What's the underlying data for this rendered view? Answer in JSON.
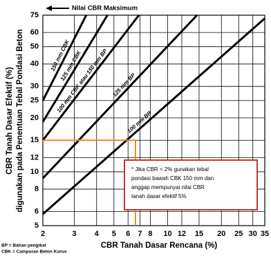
{
  "chart_data": {
    "type": "line",
    "title": "Nilai CBR Maksimum",
    "x_label": "CBR Tanah Dasar Rencana (%)",
    "y_label": [
      "CBR Tanah Dasar Efektif (%)",
      "digunakan pada Penentuan Tebal Pondasi Beton"
    ],
    "log_x": true,
    "log_y": true,
    "grid": true,
    "xlim": [
      2,
      35
    ],
    "ylim": [
      5,
      75
    ],
    "xticks": [
      2,
      3,
      4,
      5,
      6,
      7,
      8,
      10,
      12,
      15,
      20,
      25,
      30,
      35
    ],
    "yticks": [
      5,
      6,
      8,
      10,
      12,
      15,
      20,
      25,
      30,
      40,
      50,
      60,
      75
    ],
    "series": [
      {
        "name": "150 mm CBK",
        "color": "#000000",
        "x": [
          2,
          3.5
        ],
        "values": [
          25,
          75
        ]
      },
      {
        "name": "125 mm CBK",
        "color": "#000000",
        "x": [
          2,
          4.6
        ],
        "values": [
          19,
          75
        ]
      },
      {
        "name": "100 mm CBK atau 150 mm BP",
        "color": "#000000",
        "x": [
          2,
          6.9
        ],
        "values": [
          15,
          75
        ]
      },
      {
        "name": "125 mm BP",
        "color": "#000000",
        "x": [
          2,
          14.6
        ],
        "values": [
          9.2,
          75
        ]
      },
      {
        "name": "100 mm BP",
        "color": "#000000",
        "x": [
          2,
          35
        ],
        "values": [
          5.8,
          72
        ]
      }
    ],
    "guide": {
      "x": 6.6,
      "y": 15,
      "color": "#e8891e"
    },
    "annotation": {
      "border_color": "#c0392b",
      "lines": [
        "* Jika CBR < 2% gunakan tebal",
        "pondasi bawah CBK 150 mm dan",
        "anggap mempunyai nilai CBR",
        "tanah dasar efektif 5%"
      ]
    },
    "notes": [
      "BP = Bahan pengikat",
      "CBK = Campuran Beton Kurus"
    ]
  }
}
